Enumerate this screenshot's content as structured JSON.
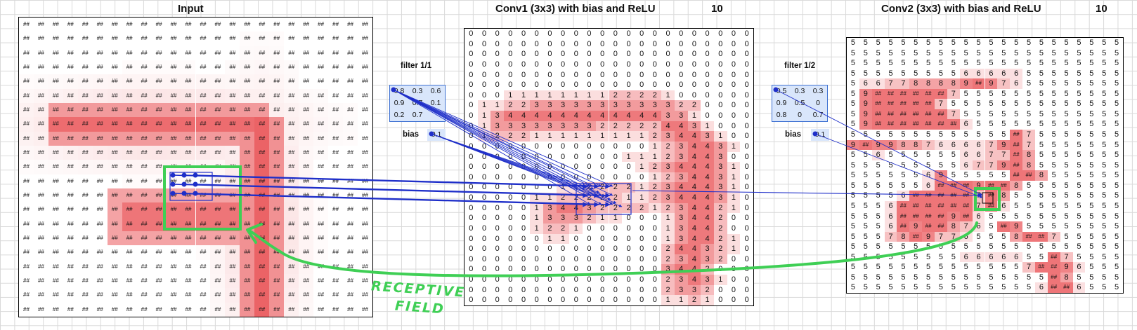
{
  "titles": {
    "input": "Input",
    "conv1": "Conv1 (3x3) with bias and ReLU",
    "conv1_count": "10",
    "conv2": "Conv2 (3x3) with bias and ReLU",
    "conv2_count": "10"
  },
  "filter1": {
    "label": "filter 1/1",
    "values": [
      [
        "0.8",
        "0.3",
        "0.6"
      ],
      [
        "0.9",
        "0.7",
        "0.1"
      ],
      [
        "0.2",
        "0.7",
        ""
      ]
    ],
    "bias_label": "bias",
    "bias_value": "0.1"
  },
  "filter2": {
    "label": "filter 1/2",
    "values": [
      [
        "0.5",
        "0.3",
        "0.3"
      ],
      [
        "0.9",
        "0.5",
        "0"
      ],
      [
        "0.8",
        "0",
        "0.7"
      ]
    ],
    "bias_label": "bias",
    "bias_value": "0.1"
  },
  "annotation": {
    "line1": "RECEPTIVE",
    "line2": "FIELD"
  },
  "grids": {
    "input_symbol": "##",
    "conv1_rows": [
      "0000000000000000000000",
      "0000000000000000000000",
      "0000000000000000000000",
      "0000000000000000000000",
      "0000000000000000000000",
      "0000000000000000000000",
      "0001111111122221000000",
      "0112233333333333220000",
      "0134444444444443310000",
      "0133333333222224431000",
      "0122211111111123443100",
      "0000000000000012344310",
      "0000000000001112344300",
      "0000000000000123444310",
      "0000000000000012344310",
      "0000000112222123444310",
      "0000011222221123444310",
      "0000013443222212344210",
      "0000013332110001344200",
      "0000012210000001344200",
      "0000001100000001344210",
      "0000000000000002443210",
      "0000000000000002343200",
      "0000000000000003442000",
      "0000000000000002343100",
      "0000000000000002332000",
      "0000000000000001121000"
    ],
    "conv2_rows": [
      "5555555555555555555555",
      "5555555555555555555555",
      "5555555555555555555555",
      "5555555556666655555555",
      "5667788889###976555555",
      "59##############755555",
      "59###############75555",
      "59################7555",
      "59#################655",
      "5555555555555###7555",
      "9###99887666679###755",
      "5565555556677###855",
      "5555555556779###855",
      "5555556955555####855",
      "5555556#######9####855",
      "55556###########7###855",
      "5556##############7###655",
      "5556############9###655",
      "5556###9####8765###955",
      "55578###97765558####755",
      "5555555555555555555555",
      "5555555556666655###755",
      "555555555555557####965",
      "5555555555555555###855",
      "5555555555555556####655"
    ]
  },
  "colors": {
    "heat": "#e8474b",
    "filter_bg": "#d9e6fb",
    "arrow": "#1f2fc9",
    "highlight": "#3fcf55"
  }
}
